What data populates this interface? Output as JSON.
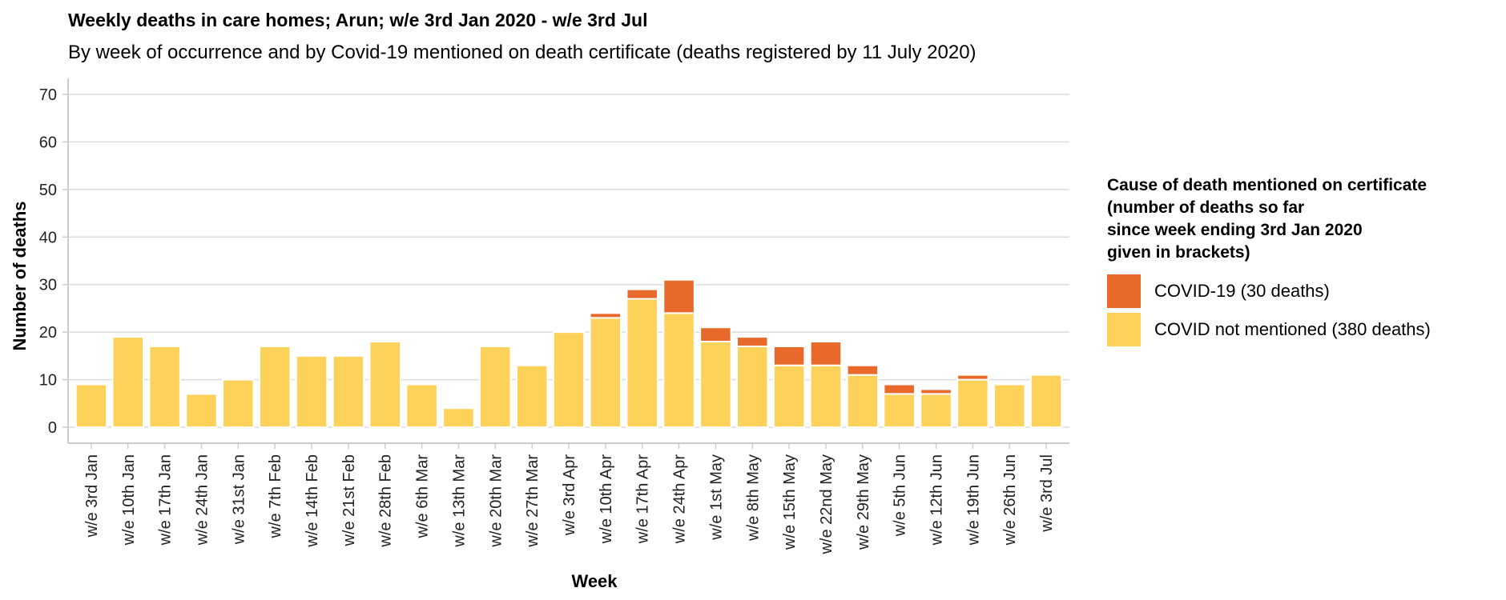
{
  "title": "Weekly deaths in care homes; Arun; w/e 3rd Jan 2020 - w/e 3rd Jul",
  "subtitle": "By week of occurrence and by Covid-19 mentioned on death certificate (deaths registered by 11 July 2020)",
  "legend": {
    "title": "Cause of death mentioned on certificate\n(number of deaths so far\nsince week ending 3rd Jan 2020\ngiven in brackets)",
    "items": [
      {
        "label": "COVID-19 (30 deaths)",
        "color": "#e8692a"
      },
      {
        "label": "COVID not mentioned (380 deaths)",
        "color": "#fdd25b"
      }
    ]
  },
  "chart_data": {
    "type": "bar",
    "stacked": true,
    "xlabel": "Week",
    "ylabel": "Number of deaths",
    "ylim": [
      0,
      70
    ],
    "yticks": [
      0,
      10,
      20,
      30,
      40,
      50,
      60,
      70
    ],
    "grid": true,
    "legend_position": "right",
    "categories": [
      "w/e 3rd Jan",
      "w/e 10th Jan",
      "w/e 17th Jan",
      "w/e 24th Jan",
      "w/e 31st Jan",
      "w/e 7th Feb",
      "w/e 14th Feb",
      "w/e 21st Feb",
      "w/e 28th Feb",
      "w/e 6th Mar",
      "w/e 13th Mar",
      "w/e 20th Mar",
      "w/e 27th Mar",
      "w/e 3rd Apr",
      "w/e 10th Apr",
      "w/e 17th Apr",
      "w/e 24th Apr",
      "w/e 1st May",
      "w/e 8th May",
      "w/e 15th May",
      "w/e 22nd May",
      "w/e 29th May",
      "w/e 5th Jun",
      "w/e 12th Jun",
      "w/e 19th Jun",
      "w/e 26th Jun",
      "w/e 3rd Jul"
    ],
    "series": [
      {
        "name": "COVID not mentioned (380 deaths)",
        "color": "#fdd25b",
        "values": [
          9,
          19,
          17,
          7,
          10,
          17,
          15,
          15,
          18,
          9,
          4,
          17,
          13,
          20,
          23,
          27,
          24,
          18,
          17,
          13,
          13,
          11,
          7,
          7,
          10,
          9,
          11
        ]
      },
      {
        "name": "COVID-19 (30 deaths)",
        "color": "#e8692a",
        "values": [
          0,
          0,
          0,
          0,
          0,
          0,
          0,
          0,
          0,
          0,
          0,
          0,
          0,
          0,
          1,
          2,
          7,
          3,
          2,
          4,
          5,
          2,
          2,
          1,
          1,
          0,
          0
        ]
      }
    ]
  }
}
